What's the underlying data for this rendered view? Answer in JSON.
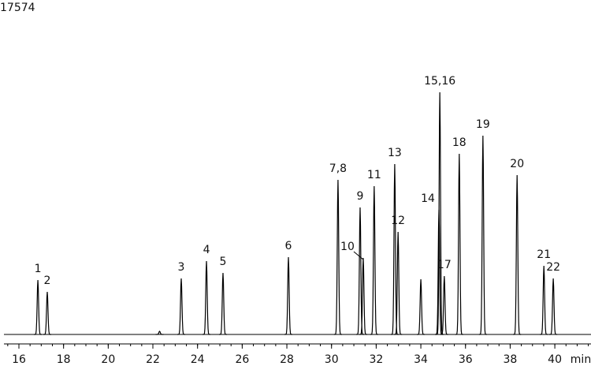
{
  "chart_data": {
    "type": "chromatogram",
    "x": [
      16.85,
      17.27,
      22.3,
      23.27,
      24.4,
      25.14,
      28.07,
      30.29,
      31.28,
      31.42,
      31.91,
      32.83,
      32.98,
      34.0,
      34.81,
      34.85,
      35.05,
      35.72,
      36.78,
      38.31,
      39.51,
      39.93
    ],
    "values": [
      2929,
      2292,
      170,
      3014,
      3948,
      3311,
      4160,
      8320,
      6834,
      4118,
      7981,
      9169,
      5519,
      2971,
      6707,
      13032,
      3141,
      9721,
      10697,
      8575,
      3693,
      3014
    ],
    "peak_labels": [
      "1",
      "2",
      null,
      "3",
      "4",
      "5",
      "6",
      "7,8",
      "9",
      "10",
      "11",
      "13",
      "12",
      null,
      "14",
      "15,16",
      "17",
      "18",
      "19",
      "20",
      "21",
      "22"
    ],
    "xlim": [
      15.33,
      41.62
    ],
    "xticks": [
      16,
      18,
      20,
      22,
      24,
      26,
      28,
      30,
      32,
      34,
      36,
      38,
      40
    ],
    "x_label": "min",
    "ylim": [
      0,
      17574
    ],
    "yticks": [
      17574
    ],
    "color": "#000000"
  }
}
